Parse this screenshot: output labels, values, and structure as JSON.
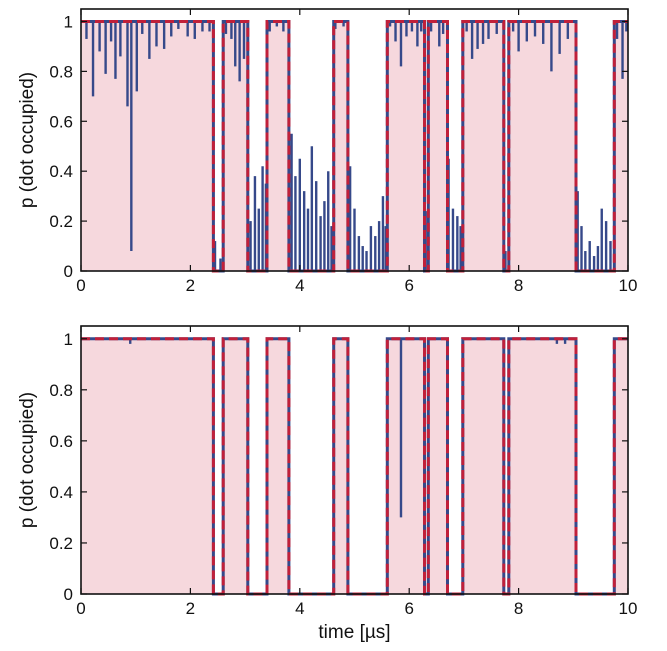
{
  "colors": {
    "fill": "#f6d8dd",
    "trace": "#36498a",
    "threshold": "#c0203a",
    "axis": "#111111",
    "background": "#ffffff"
  },
  "chart_data": [
    {
      "type": "line",
      "title": "",
      "xlabel": "",
      "ylabel": "p (dot occupied)",
      "xlim": [
        0,
        10
      ],
      "ylim": [
        0,
        1.05
      ],
      "xticks": [
        0,
        2,
        4,
        6,
        8,
        10
      ],
      "yticks": [
        0,
        0.2,
        0.4,
        0.6,
        0.8,
        1
      ],
      "xtick_labels": [
        "0",
        "2",
        "4",
        "6",
        "8",
        "10"
      ],
      "ytick_labels": [
        "0",
        "0.2",
        "0.4",
        "0.6",
        "0.8",
        "1"
      ],
      "grid": false,
      "occupied_intervals": [
        [
          0,
          2.42
        ],
        [
          2.6,
          3.05
        ],
        [
          3.4,
          3.8
        ],
        [
          4.62,
          4.88
        ],
        [
          5.6,
          6.28
        ],
        [
          6.35,
          6.7
        ],
        [
          6.98,
          7.73
        ],
        [
          7.82,
          9.05
        ],
        [
          9.75,
          10
        ]
      ],
      "dip_points": [
        [
          0.1,
          0.93
        ],
        [
          0.22,
          0.7
        ],
        [
          0.34,
          0.88
        ],
        [
          0.45,
          0.79
        ],
        [
          0.55,
          0.92
        ],
        [
          0.63,
          0.77
        ],
        [
          0.72,
          0.86
        ],
        [
          0.85,
          0.66
        ],
        [
          0.92,
          0.08
        ],
        [
          1.02,
          0.72
        ],
        [
          1.12,
          0.95
        ],
        [
          1.25,
          0.85
        ],
        [
          1.38,
          0.9
        ],
        [
          1.52,
          0.89
        ],
        [
          1.65,
          0.94
        ],
        [
          1.78,
          0.97
        ],
        [
          1.95,
          0.94
        ],
        [
          2.08,
          0.93
        ],
        [
          2.22,
          0.96
        ],
        [
          2.35,
          0.96
        ],
        [
          2.65,
          0.95
        ],
        [
          2.75,
          0.93
        ],
        [
          2.82,
          0.82
        ],
        [
          2.9,
          0.76
        ],
        [
          2.98,
          0.85
        ],
        [
          3.45,
          0.96
        ],
        [
          3.58,
          0.98
        ],
        [
          3.7,
          0.96
        ],
        [
          4.65,
          0.97
        ],
        [
          4.8,
          0.98
        ],
        [
          5.65,
          0.98
        ],
        [
          5.75,
          0.92
        ],
        [
          5.85,
          0.82
        ],
        [
          5.95,
          0.94
        ],
        [
          6.05,
          0.96
        ],
        [
          6.15,
          0.9
        ],
        [
          6.22,
          0.96
        ],
        [
          6.4,
          0.96
        ],
        [
          6.55,
          0.9
        ],
        [
          6.62,
          0.95
        ],
        [
          7.05,
          0.96
        ],
        [
          7.15,
          0.85
        ],
        [
          7.25,
          0.89
        ],
        [
          7.35,
          0.91
        ],
        [
          7.45,
          0.93
        ],
        [
          7.6,
          0.95
        ],
        [
          7.9,
          0.96
        ],
        [
          8.0,
          0.88
        ],
        [
          8.15,
          0.92
        ],
        [
          8.3,
          0.94
        ],
        [
          8.45,
          0.91
        ],
        [
          8.6,
          0.8
        ],
        [
          8.75,
          0.87
        ],
        [
          8.9,
          0.93
        ],
        [
          9.8,
          0.93
        ],
        [
          9.9,
          0.77
        ],
        [
          9.97,
          0.96
        ]
      ],
      "spike_points": [
        [
          2.45,
          0.12
        ],
        [
          2.55,
          0.05
        ],
        [
          3.1,
          0.2
        ],
        [
          3.18,
          0.38
        ],
        [
          3.25,
          0.25
        ],
        [
          3.32,
          0.42
        ],
        [
          3.38,
          0.35
        ],
        [
          3.85,
          0.55
        ],
        [
          3.92,
          0.38
        ],
        [
          4.0,
          0.45
        ],
        [
          4.08,
          0.32
        ],
        [
          4.15,
          0.25
        ],
        [
          4.22,
          0.5
        ],
        [
          4.3,
          0.36
        ],
        [
          4.38,
          0.22
        ],
        [
          4.45,
          0.28
        ],
        [
          4.52,
          0.4
        ],
        [
          4.58,
          0.18
        ],
        [
          4.92,
          0.42
        ],
        [
          5.0,
          0.25
        ],
        [
          5.08,
          0.14
        ],
        [
          5.15,
          0.1
        ],
        [
          5.22,
          0.08
        ],
        [
          5.3,
          0.18
        ],
        [
          5.38,
          0.14
        ],
        [
          5.45,
          0.2
        ],
        [
          5.52,
          0.3
        ],
        [
          5.57,
          0.18
        ],
        [
          6.3,
          0.24
        ],
        [
          6.72,
          0.45
        ],
        [
          6.8,
          0.25
        ],
        [
          6.88,
          0.22
        ],
        [
          6.94,
          0.18
        ],
        [
          7.76,
          0.08
        ],
        [
          9.08,
          0.32
        ],
        [
          9.15,
          0.18
        ],
        [
          9.22,
          0.08
        ],
        [
          9.3,
          0.12
        ],
        [
          9.38,
          0.06
        ],
        [
          9.45,
          0.1
        ],
        [
          9.52,
          0.25
        ],
        [
          9.6,
          0.2
        ],
        [
          9.68,
          0.12
        ]
      ]
    },
    {
      "type": "line",
      "title": "",
      "xlabel": "time [µs]",
      "ylabel": "p (dot occupied)",
      "xlim": [
        0,
        10
      ],
      "ylim": [
        0,
        1.05
      ],
      "xticks": [
        0,
        2,
        4,
        6,
        8,
        10
      ],
      "yticks": [
        0,
        0.2,
        0.4,
        0.6,
        0.8,
        1
      ],
      "xtick_labels": [
        "0",
        "2",
        "4",
        "6",
        "8",
        "10"
      ],
      "ytick_labels": [
        "0",
        "0.2",
        "0.4",
        "0.6",
        "0.8",
        "1"
      ],
      "grid": false,
      "occupied_intervals": [
        [
          0,
          2.42
        ],
        [
          2.6,
          3.05
        ],
        [
          3.4,
          3.8
        ],
        [
          4.62,
          4.88
        ],
        [
          5.6,
          6.28
        ],
        [
          6.35,
          6.7
        ],
        [
          6.98,
          7.73
        ],
        [
          7.82,
          9.05
        ],
        [
          9.75,
          10
        ]
      ],
      "dip_points": [
        [
          0.9,
          0.98
        ],
        [
          5.85,
          0.3
        ],
        [
          8.7,
          0.98
        ],
        [
          8.85,
          0.98
        ]
      ],
      "spike_points": []
    }
  ]
}
